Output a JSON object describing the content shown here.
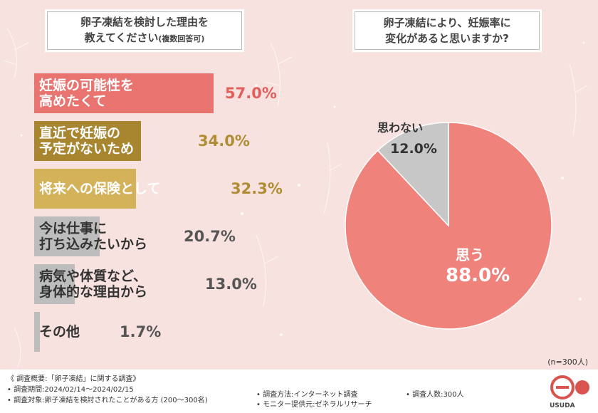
{
  "left_title": {
    "line1": "卵子凍結を検討した理由を",
    "line2": "教えてください",
    "line2_small": "(複数回答可)"
  },
  "right_title": {
    "line1": "卵子凍結により、妊娠率に",
    "line2": "変化があると思いますか?"
  },
  "colors": {
    "bar1": "#e8736f",
    "bar2": "#a8852f",
    "bar3": "#d4b25a",
    "bar4": "#bdbdbd",
    "pie_yes": "#ef837c",
    "pie_no": "#c7c7c7",
    "value_red": "#e0605c",
    "value_gold": "#b08d35",
    "value_gray": "#555555"
  },
  "chart_data": [
    {
      "type": "bar",
      "orientation": "horizontal",
      "categories": [
        "妊娠の可能性を高めたくて",
        "直近で妊娠の予定がないため",
        "将来への保険として",
        "今は仕事に打ち込みたいから",
        "病気や体質など、身体的な理由から",
        "その他"
      ],
      "values": [
        57.0,
        34.0,
        32.3,
        20.7,
        13.0,
        1.7
      ],
      "value_labels": [
        "57.0%",
        "34.0%",
        "32.3%",
        "20.7%",
        "13.0%",
        "1.7%"
      ],
      "label_lines": [
        [
          "妊娠の可能性を",
          "高めたくて"
        ],
        [
          "直近で妊娠の",
          "予定がないため"
        ],
        [
          "将来への保険として"
        ],
        [
          "今は仕事に",
          "打ち込みたいから"
        ],
        [
          "病気や体質など、",
          "身体的な理由から"
        ],
        [
          "その他"
        ]
      ],
      "unit": "%"
    },
    {
      "type": "pie",
      "categories": [
        "思う",
        "思わない"
      ],
      "values": [
        88.0,
        12.0
      ],
      "value_labels": [
        "88.0%",
        "12.0%"
      ]
    }
  ],
  "sample_note": "(n=300人)",
  "footer": {
    "summary": "《 調査概要:「卵子凍結」に関する調査》",
    "period": "• 調査期間:2024/02/14〜2024/02/15",
    "target": "• 調査対象:卵子凍結を検討されたことがある方 (200〜300名)",
    "method": "• 調査方法:インターネット調査",
    "provider": "• モニター提供元:ゼネラルリサーチ",
    "count": "• 調査人数:300人",
    "logo_text": "USUDA"
  }
}
